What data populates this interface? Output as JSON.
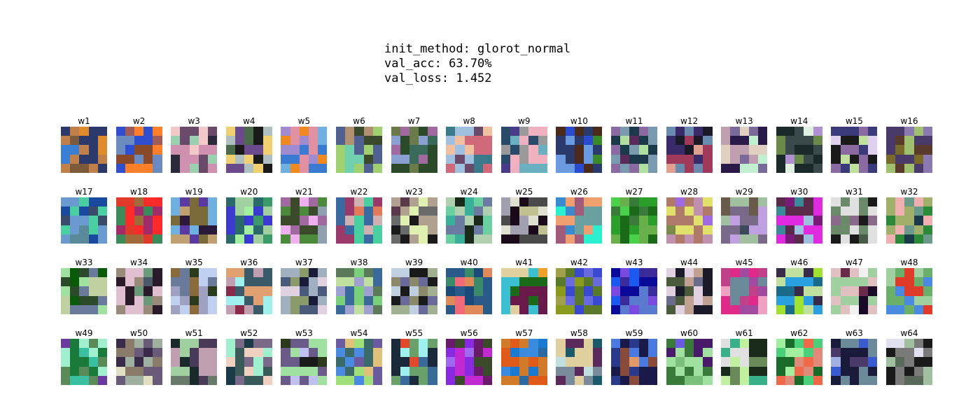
{
  "header": {
    "init_method": "init_method: glorot_normal",
    "val_acc": "val_acc: 63.70%",
    "val_loss": "val_loss: 1.452"
  },
  "weights": {
    "grid_columns": 16,
    "grid_rows": 4,
    "kernel_size": 5,
    "labels": [
      "w1",
      "w2",
      "w3",
      "w4",
      "w5",
      "w6",
      "w7",
      "w8",
      "w9",
      "w10",
      "w11",
      "w12",
      "w13",
      "w14",
      "w15",
      "w16",
      "w17",
      "w18",
      "w19",
      "w20",
      "w21",
      "w22",
      "w23",
      "w24",
      "w25",
      "w26",
      "w27",
      "w28",
      "w29",
      "w30",
      "w31",
      "w32",
      "w33",
      "w34",
      "w35",
      "w36",
      "w37",
      "w38",
      "w39",
      "w40",
      "w41",
      "w42",
      "w43",
      "w44",
      "w45",
      "w46",
      "w47",
      "w48",
      "w49",
      "w50",
      "w51",
      "w52",
      "w53",
      "w54",
      "w55",
      "w56",
      "w57",
      "w58",
      "w59",
      "w60",
      "w61",
      "w62",
      "w63",
      "w64"
    ],
    "palettes": [
      [
        "#c17f4a",
        "#e08a2e",
        "#2b3a6b",
        "#3a7fd4",
        "#7c5b3a"
      ],
      [
        "#8a4a2a",
        "#2f4fd0",
        "#ff7f2a",
        "#6a8ac0",
        "#a05a5a"
      ],
      [
        "#9ad0b0",
        "#f2c8c8",
        "#2a2a3a",
        "#6a4a6a",
        "#d090b0"
      ],
      [
        "#f0d070",
        "#1a1a1a",
        "#6a4a8a",
        "#b0c0c0",
        "#4a6a4a"
      ],
      [
        "#f08a20",
        "#e090a0",
        "#3a7ad0",
        "#70b0e0",
        "#a08ad0"
      ],
      [
        "#b09070",
        "#3a4a2a",
        "#70d0b0",
        "#506090",
        "#a0d070"
      ],
      [
        "#2a4a2a",
        "#8aa0d0",
        "#6a7a4a",
        "#3a6a5a",
        "#a06aa0"
      ],
      [
        "#6a4a6a",
        "#d06a7a",
        "#3a7a8a",
        "#a0c0e0",
        "#f0c0a0"
      ],
      [
        "#f0b0c0",
        "#2a4a6a",
        "#4a3a8a",
        "#6ab0c0",
        "#9a9a9a"
      ],
      [
        "#4a2a1a",
        "#2a4ad0",
        "#3a8a2a",
        "#6a9ae0",
        "#2a3a6a"
      ],
      [
        "#7a9ab0",
        "#1a3a4a",
        "#b0e0a0",
        "#5a2a5a",
        "#8a6aa0"
      ],
      [
        "#e0a090",
        "#1a1a2a",
        "#a03a5a",
        "#6a8ab0",
        "#3a2a6a"
      ],
      [
        "#c0f0d0",
        "#2a1a4a",
        "#c0a0b0",
        "#7a6a9a",
        "#e0d0c0"
      ],
      [
        "#3a4a4a",
        "#b090d0",
        "#1a2a2a",
        "#e0f0e0",
        "#6a8a4a"
      ],
      [
        "#c0e0a0",
        "#3a3a7a",
        "#e0d0f0",
        "#8a6aa0",
        "#1a1a1a"
      ],
      [
        "#4a3a6a",
        "#7a6a2a",
        "#8a7ab0",
        "#a0c070",
        "#5a3a2a"
      ],
      [
        "#3a4a6a",
        "#5a8a9a",
        "#1a4aa0",
        "#4ad0a0",
        "#6a9ad0"
      ],
      [
        "#3a8a5a",
        "#a02a6a",
        "#ff2a2a",
        "#e03a2a",
        "#a06a3a"
      ],
      [
        "#7a6a3a",
        "#c0a070",
        "#5a3aa0",
        "#70b0e0",
        "#2a1a3a"
      ],
      [
        "#3a3ad0",
        "#a0d0a0",
        "#2a6a6a",
        "#3a9a6a",
        "#a0f0a0"
      ],
      [
        "#3a4a2a",
        "#a06aa0",
        "#f0b0f0",
        "#4a8a3a",
        "#90a0b0"
      ],
      [
        "#3a6aa0",
        "#4ad0a0",
        "#e07a5a",
        "#d0b0b0",
        "#9a3a6a"
      ],
      [
        "#6a6a6a",
        "#e0f0b0",
        "#1a1a1a",
        "#5a3a4a",
        "#b0a090"
      ],
      [
        "#3ab09a",
        "#6ad0a0",
        "#1a2a1a",
        "#b0d0b0",
        "#6a7aa0"
      ],
      [
        "#4a4a4a",
        "#e0e0d0",
        "#1a0a1a",
        "#a0a0b0",
        "#c0c090"
      ],
      [
        "#f0a070",
        "#2af0d0",
        "#3a8ad0",
        "#a05a7a",
        "#6aa0a0"
      ],
      [
        "#2aa02a",
        "#4ad04a",
        "#1a6a1a",
        "#6ab04a",
        "#3a7a3a"
      ],
      [
        "#b07a6a",
        "#e0e06a",
        "#a06ae0",
        "#7a8a4a",
        "#c090b0"
      ],
      [
        "#7a6a8a",
        "#a0c0a0",
        "#3a4a5a",
        "#c0a0e0",
        "#6a5a4a"
      ],
      [
        "#7a1a7a",
        "#e02ae0",
        "#3a8a9a",
        "#a0c0e0",
        "#5a2a4a"
      ],
      [
        "#4a5a4a",
        "#8a6a8a",
        "#1a1a1a",
        "#e0e0e0",
        "#6a8a6a"
      ],
      [
        "#1a3a4a",
        "#2a8a3a",
        "#a0b06a",
        "#f0b0b0",
        "#6a9a8a"
      ],
      [
        "#2a4a2a",
        "#a0e0a0",
        "#0a5a0a",
        "#6a7a9a",
        "#c0d0a0"
      ],
      [
        "#9a8a7a",
        "#e0c0d0",
        "#2a1a2a",
        "#6a9a7a",
        "#4a5a6a"
      ],
      [
        "#6a7a9a",
        "#a0a0c0",
        "#2a3a1a",
        "#c0d0f0",
        "#8a6a3a"
      ],
      [
        "#a0f0f0",
        "#8a2a4a",
        "#c0a0b0",
        "#3a5a6a",
        "#e0a070"
      ],
      [
        "#4a5a7a",
        "#e0d0e0",
        "#1a1a3a",
        "#a0b0c0",
        "#8a9a6a"
      ],
      [
        "#7ad07a",
        "#a0a0d0",
        "#5a7a5a",
        "#c0e0a0",
        "#3a6a9a"
      ],
      [
        "#8a8a6a",
        "#c0d0e0",
        "#1a1a1a",
        "#6a6a9a",
        "#a0b090"
      ],
      [
        "#2a5a8a",
        "#1a4a7a",
        "#f06a7a",
        "#3a8a6a",
        "#e08a5a"
      ],
      [
        "#f0a02a",
        "#3ac0d0",
        "#6a1a4a",
        "#1a6a1a",
        "#e0d0a0"
      ],
      [
        "#3a4ad0",
        "#6a6ae0",
        "#8a9a1a",
        "#5a7a2a",
        "#a0a04a"
      ],
      [
        "#3a2a9a",
        "#1a5af0",
        "#7a4ae0",
        "#0a0a9a",
        "#5a7ad0"
      ],
      [
        "#c0a090",
        "#1a1a2a",
        "#e0d0e0",
        "#6a6a8a",
        "#4a5a3a"
      ],
      [
        "#e02a8a",
        "#c0408a",
        "#f0a0c0",
        "#a04aa0",
        "#6a8a9a"
      ],
      [
        "#3a2a4a",
        "#a0e030",
        "#1a6a8a",
        "#2aa0e0",
        "#c0e0a0"
      ],
      [
        "#e0c0c0",
        "#1a0a2a",
        "#a0d0a0",
        "#6a2a4a",
        "#f0f0f0"
      ],
      [
        "#2a2aa0",
        "#e03a2a",
        "#6ab06a",
        "#4a8ae0",
        "#a0d0a0"
      ],
      [
        "#3ac0a0",
        "#1a7a3a",
        "#a0f0d0",
        "#6a3aa0",
        "#5a8a5a"
      ],
      [
        "#8a7a6a",
        "#e0e0c0",
        "#3a2a4a",
        "#a0b0a0",
        "#6a5a7a"
      ],
      [
        "#6a7a6a",
        "#1a2a2a",
        "#c0a0b0",
        "#4a3a5a",
        "#a0d0a0"
      ],
      [
        "#a0f0d0",
        "#1a3a4a",
        "#f0d0c0",
        "#7a6a8a",
        "#3a5a5a"
      ],
      [
        "#2a3a1a",
        "#c0c0f0",
        "#6a5a8a",
        "#a0e0a0",
        "#1a1a1a"
      ],
      [
        "#4a8ae0",
        "#e0c07a",
        "#3a6a6a",
        "#a0e07a",
        "#6a5aa0"
      ],
      [
        "#e04a2a",
        "#3a6a9a",
        "#a0f0f0",
        "#1a2a3a",
        "#6aa06a"
      ],
      [
        "#8a2ae0",
        "#c02ad0",
        "#6a1a6a",
        "#a06af0",
        "#3a4a2a"
      ],
      [
        "#1a7ad0",
        "#d07a2a",
        "#3a8ae0",
        "#e05a1a",
        "#2a6aa0"
      ],
      [
        "#1a5a6a",
        "#e0d0a0",
        "#5a2a5a",
        "#c0e0e0",
        "#7a8a9a"
      ],
      [
        "#4a7ae0",
        "#1a1a4a",
        "#e09a6a",
        "#2a3a8a",
        "#8a4a3a"
      ],
      [
        "#6a5ae0",
        "#4a1a6a",
        "#7ac07a",
        "#a0e0a0",
        "#3a7a3a"
      ],
      [
        "#c0f0a0",
        "#1a2a1a",
        "#6a8a5a",
        "#e0e0e0",
        "#3ab08a"
      ],
      [
        "#f06a4a",
        "#4ad07a",
        "#a0f0a0",
        "#1a6a2a",
        "#e08a7a"
      ],
      [
        "#3a5ad0",
        "#1a1a3a",
        "#6a8a9a",
        "#a0b0e0",
        "#4a3a6a"
      ],
      [
        "#7a7a7a",
        "#e0e0f0",
        "#1a1a1a",
        "#a0c0a0",
        "#5a6a5a"
      ]
    ]
  }
}
